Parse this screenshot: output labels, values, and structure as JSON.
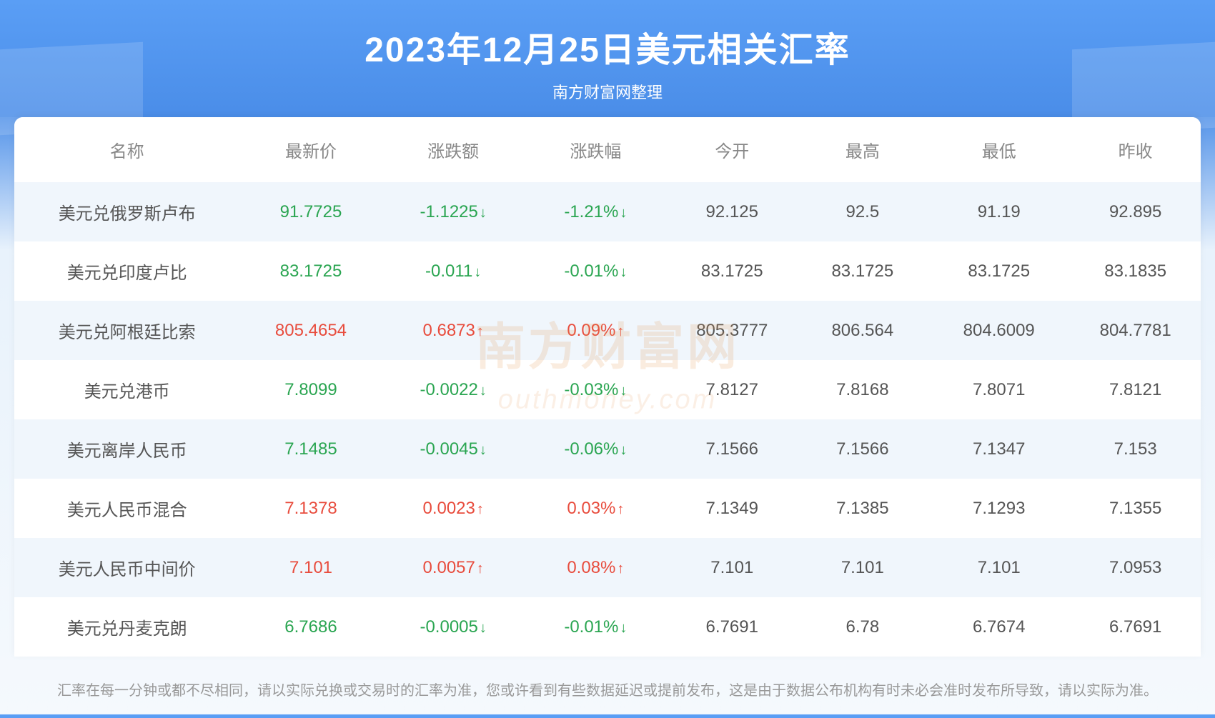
{
  "header": {
    "title": "2023年12月25日美元相关汇率",
    "subtitle": "南方财富网整理"
  },
  "table": {
    "columns": [
      {
        "key": "name",
        "label": "名称",
        "class": "col-name"
      },
      {
        "key": "price",
        "label": "最新价",
        "class": "col-price"
      },
      {
        "key": "change",
        "label": "涨跌额",
        "class": "col-change"
      },
      {
        "key": "pct",
        "label": "涨跌幅",
        "class": "col-pct"
      },
      {
        "key": "open",
        "label": "今开",
        "class": "col-open"
      },
      {
        "key": "high",
        "label": "最高",
        "class": "col-high"
      },
      {
        "key": "low",
        "label": "最低",
        "class": "col-low"
      },
      {
        "key": "prev",
        "label": "昨收",
        "class": "col-prev"
      }
    ],
    "rows": [
      {
        "name": "美元兑俄罗斯卢布",
        "price": "91.7725",
        "change": "-1.1225",
        "pct": "-1.21%",
        "open": "92.125",
        "high": "92.5",
        "low": "91.19",
        "prev": "92.895",
        "dir": "down"
      },
      {
        "name": "美元兑印度卢比",
        "price": "83.1725",
        "change": "-0.011",
        "pct": "-0.01%",
        "open": "83.1725",
        "high": "83.1725",
        "low": "83.1725",
        "prev": "83.1835",
        "dir": "down"
      },
      {
        "name": "美元兑阿根廷比索",
        "price": "805.4654",
        "change": "0.6873",
        "pct": "0.09%",
        "open": "805.3777",
        "high": "806.564",
        "low": "804.6009",
        "prev": "804.7781",
        "dir": "up"
      },
      {
        "name": "美元兑港币",
        "price": "7.8099",
        "change": "-0.0022",
        "pct": "-0.03%",
        "open": "7.8127",
        "high": "7.8168",
        "low": "7.8071",
        "prev": "7.8121",
        "dir": "down"
      },
      {
        "name": "美元离岸人民币",
        "price": "7.1485",
        "change": "-0.0045",
        "pct": "-0.06%",
        "open": "7.1566",
        "high": "7.1566",
        "low": "7.1347",
        "prev": "7.153",
        "dir": "down"
      },
      {
        "name": "美元人民币混合",
        "price": "7.1378",
        "change": "0.0023",
        "pct": "0.03%",
        "open": "7.1349",
        "high": "7.1385",
        "low": "7.1293",
        "prev": "7.1355",
        "dir": "up"
      },
      {
        "name": "美元人民币中间价",
        "price": "7.101",
        "change": "0.0057",
        "pct": "0.08%",
        "open": "7.101",
        "high": "7.101",
        "low": "7.101",
        "prev": "7.0953",
        "dir": "up"
      },
      {
        "name": "美元兑丹麦克朗",
        "price": "6.7686",
        "change": "-0.0005",
        "pct": "-0.01%",
        "open": "6.7691",
        "high": "6.78",
        "low": "6.7674",
        "prev": "6.7691",
        "dir": "down"
      }
    ]
  },
  "styling": {
    "colors": {
      "up": "#e84c3d",
      "down": "#2aa551",
      "header_bg_top": "#5a9ef5",
      "header_bg_bottom": "#4a8de8",
      "title_text": "#ffffff",
      "th_text": "#888888",
      "td_text": "#555555",
      "row_odd_bg": "#f0f6fc",
      "row_even_bg": "#ffffff",
      "footer_text": "#999999",
      "watermark": "rgba(230,150,80,0.18)"
    },
    "fonts": {
      "title_size": 48,
      "subtitle_size": 22,
      "th_size": 24,
      "td_size": 24,
      "footer_size": 20
    },
    "arrows": {
      "up": "↑",
      "down": "↓"
    }
  },
  "watermark": {
    "main": "南方财富网",
    "sub": "outhmoney.com"
  },
  "footer": {
    "text": "汇率在每一分钟或都不尽相同，请以实际兑换或交易时的汇率为准，您或许看到有些数据延迟或提前发布，这是由于数据公布机构有时未必会准时发布所导致，请以实际为准。"
  }
}
